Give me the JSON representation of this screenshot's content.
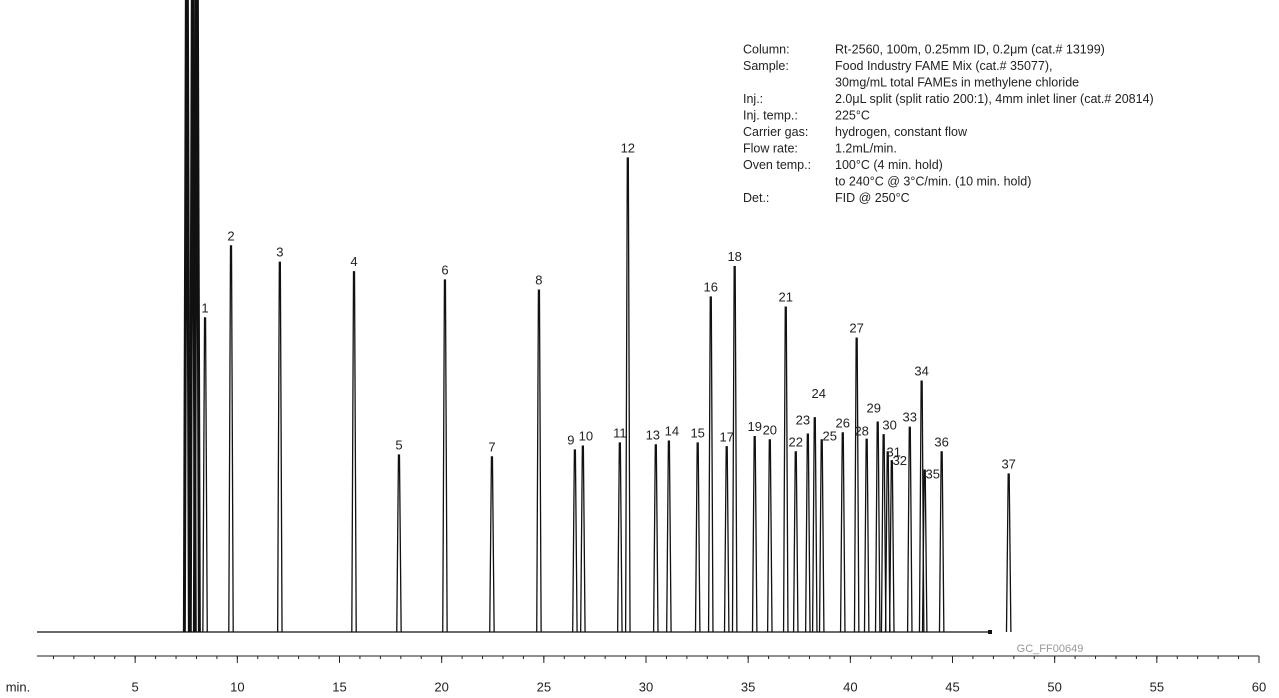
{
  "chart_data": {
    "type": "chromatogram",
    "xlabel": "min.",
    "xlim": [
      0,
      60
    ],
    "xticks": [
      5,
      10,
      15,
      20,
      25,
      30,
      35,
      40,
      45,
      50,
      55,
      60
    ],
    "ylim": [
      0,
      100
    ],
    "color": "#111111",
    "x": [
      7.53,
      7.82,
      8.02,
      8.42,
      9.69,
      12.08,
      15.71,
      17.91,
      20.16,
      22.46,
      24.76,
      26.52,
      26.91,
      28.72,
      29.11,
      30.48,
      31.12,
      32.53,
      33.17,
      33.95,
      34.34,
      35.32,
      36.06,
      36.84,
      37.33,
      37.92,
      38.26,
      38.6,
      39.63,
      40.31,
      40.8,
      41.34,
      41.63,
      41.83,
      42.03,
      42.91,
      43.49,
      43.64,
      44.47,
      47.75
    ],
    "values": [
      100,
      100,
      100,
      49.7,
      61.1,
      58.5,
      57.0,
      28.0,
      55.7,
      27.7,
      54.1,
      28.8,
      29.4,
      29.9,
      75.0,
      29.6,
      30.2,
      29.9,
      53.0,
      29.3,
      57.8,
      30.9,
      30.4,
      51.4,
      28.5,
      31.3,
      33.9,
      30.4,
      31.5,
      46.5,
      30.5,
      33.2,
      31.2,
      28.5,
      27.1,
      32.4,
      39.7,
      25.6,
      28.5,
      25.0
    ],
    "peak_labels": [
      null,
      null,
      null,
      "1",
      "2",
      "3",
      "4",
      "5",
      "6",
      "7",
      "8",
      "9",
      "10",
      "11",
      "12",
      "13",
      "14",
      "15",
      "16",
      "17",
      "18",
      "19",
      "20",
      "21",
      "22",
      "23",
      "24",
      "25",
      "26",
      "27",
      "28",
      "29",
      "30",
      "31",
      "32",
      "33",
      "34",
      "35",
      "36",
      "37"
    ],
    "info": [
      {
        "label": "Column:",
        "lines": [
          "Rt-2560, 100m, 0.25mm ID, 0.2μm (cat.# 13199)"
        ]
      },
      {
        "label": "Sample:",
        "lines": [
          "Food Industry FAME Mix (cat.# 35077),",
          "30mg/mL total FAMEs in methylene chloride"
        ]
      },
      {
        "label": "Inj.:",
        "lines": [
          "2.0μL split (split ratio 200:1), 4mm inlet liner (cat.# 20814)"
        ]
      },
      {
        "label": "Inj. temp.:",
        "lines": [
          "225°C"
        ]
      },
      {
        "label": "Carrier gas:",
        "lines": [
          "hydrogen, constant flow"
        ]
      },
      {
        "label": "Flow rate:",
        "lines": [
          "1.2mL/min."
        ]
      },
      {
        "label": "Oven temp.:",
        "lines": [
          "100°C (4 min. hold)",
          "to 240°C @ 3°C/min. (10 min. hold)"
        ]
      },
      {
        "label": "Det.:",
        "lines": [
          "FID @ 250°C"
        ]
      }
    ],
    "code": "GC_FF00649"
  }
}
